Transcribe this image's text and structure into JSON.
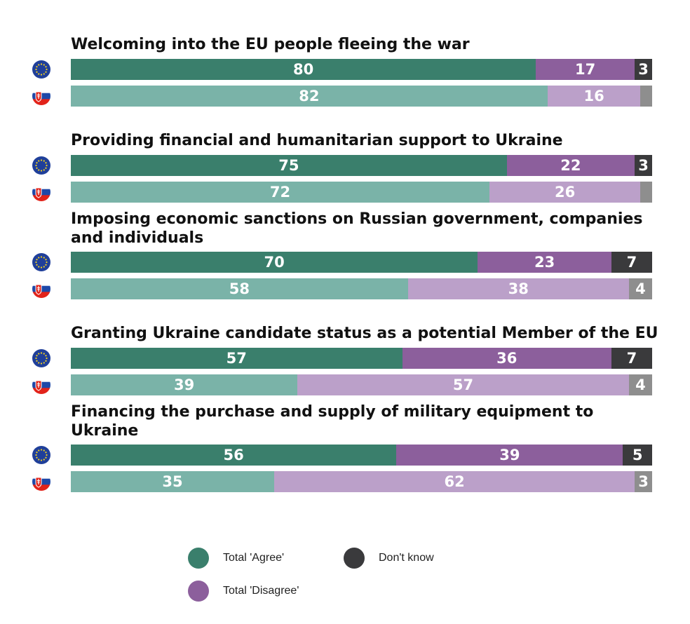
{
  "chart_data": {
    "type": "bar",
    "orientation": "horizontal",
    "stacked": true,
    "xlim": [
      0,
      100
    ],
    "groups": [
      {
        "title": "Welcoming into the EU people fleeing the war",
        "rows": [
          {
            "flag": "eu-flag-icon",
            "agree": 80,
            "disagree": 17,
            "dont_know": 3,
            "agree_label": "80",
            "disagree_label": "17",
            "dont_know_label": "3"
          },
          {
            "flag": "slovakia-flag-icon",
            "agree": 82,
            "disagree": 16,
            "dont_know": 2,
            "agree_label": "82",
            "disagree_label": "16",
            "dont_know_label": ""
          }
        ]
      },
      {
        "title": "Providing financial and humanitarian support to Ukraine",
        "rows": [
          {
            "flag": "eu-flag-icon",
            "agree": 75,
            "disagree": 22,
            "dont_know": 3,
            "agree_label": "75",
            "disagree_label": "22",
            "dont_know_label": "3"
          },
          {
            "flag": "slovakia-flag-icon",
            "agree": 72,
            "disagree": 26,
            "dont_know": 2,
            "agree_label": "72",
            "disagree_label": "26",
            "dont_know_label": ""
          }
        ]
      },
      {
        "title": "Imposing economic sanctions on Russian government, companies and individuals",
        "rows": [
          {
            "flag": "eu-flag-icon",
            "agree": 70,
            "disagree": 23,
            "dont_know": 7,
            "agree_label": "70",
            "disagree_label": "23",
            "dont_know_label": "7"
          },
          {
            "flag": "slovakia-flag-icon",
            "agree": 58,
            "disagree": 38,
            "dont_know": 4,
            "agree_label": "58",
            "disagree_label": "38",
            "dont_know_label": "4"
          }
        ]
      },
      {
        "title": "Granting Ukraine candidate status as a potential Member of the EU",
        "rows": [
          {
            "flag": "eu-flag-icon",
            "agree": 57,
            "disagree": 36,
            "dont_know": 7,
            "agree_label": "57",
            "disagree_label": "36",
            "dont_know_label": "7"
          },
          {
            "flag": "slovakia-flag-icon",
            "agree": 39,
            "disagree": 57,
            "dont_know": 4,
            "agree_label": "39",
            "disagree_label": "57",
            "dont_know_label": "4"
          }
        ]
      },
      {
        "title": "Financing the purchase and supply of military equipment to Ukraine",
        "rows": [
          {
            "flag": "eu-flag-icon",
            "agree": 56,
            "disagree": 39,
            "dont_know": 5,
            "agree_label": "56",
            "disagree_label": "39",
            "dont_know_label": "5"
          },
          {
            "flag": "slovakia-flag-icon",
            "agree": 35,
            "disagree": 62,
            "dont_know": 3,
            "agree_label": "35",
            "disagree_label": "62",
            "dont_know_label": "3"
          }
        ]
      }
    ],
    "legend": [
      {
        "key": "agree",
        "label": "Total 'Agree'"
      },
      {
        "key": "disagree",
        "label": "Total 'Disagree'"
      },
      {
        "key": "dont_know",
        "label": "Don't know"
      }
    ],
    "legend_position": "bottom",
    "colors": {
      "eu": {
        "agree": "#3a7f6c",
        "disagree": "#8c5f9c",
        "dont_know": "#3a3a3c"
      },
      "slovakia": {
        "agree": "#7ab3a8",
        "disagree": "#bba0c9",
        "dont_know": "#8e8e8e"
      },
      "legend": {
        "agree": "#3a7f6c",
        "disagree": "#8c5f9c",
        "dont_know": "#3a3a3c"
      }
    }
  }
}
